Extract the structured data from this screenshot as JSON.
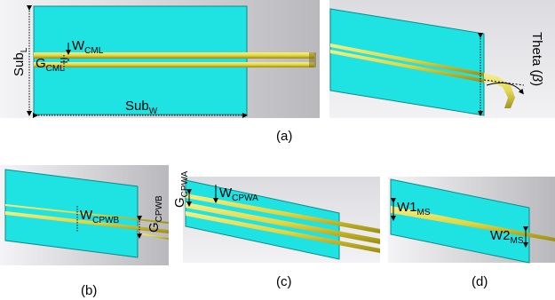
{
  "figure": {
    "panel_a": {
      "caption": "(a)",
      "sub_l": {
        "main": "Sub",
        "sub": "L"
      },
      "sub_w": {
        "main": "Sub",
        "sub": "W"
      },
      "w_cml": {
        "main": "W",
        "sub": "CML"
      },
      "g_cml": {
        "main": "G",
        "sub": "CML"
      },
      "theta": {
        "main": "Theta (",
        "sym": "β",
        "end": ")"
      }
    },
    "panel_b": {
      "caption": "(b)",
      "w_cpwb": {
        "main": "W",
        "sub": "CPWB"
      },
      "g_cpwb": {
        "main": "G",
        "sub": "CPWB"
      }
    },
    "panel_c": {
      "caption": "(c)",
      "w_cpwa": {
        "main": "W",
        "sub": "CPWA"
      },
      "g_cpwa": {
        "main": "G",
        "sub": "CPWA"
      }
    },
    "panel_d": {
      "caption": "(d)",
      "w1_ms": {
        "main": "W1",
        "sub": "MS"
      },
      "w2_ms": {
        "main": "W2",
        "sub": "MS"
      }
    },
    "colors": {
      "substrate": "#1fe3e3",
      "substrate_edge": "#0a8a8a",
      "strip": "#e8e15a",
      "strip_dark": "#8a7a10",
      "background": "#c8c8cc"
    }
  }
}
